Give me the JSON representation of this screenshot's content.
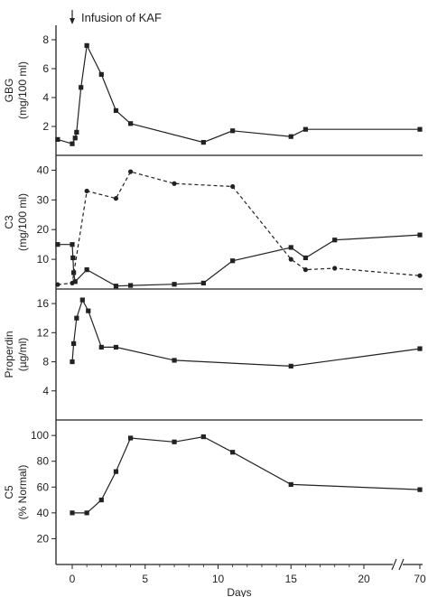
{
  "chart_data": [
    {
      "type": "line",
      "ylabel": "GBG (mg/100 ml)",
      "ylabel_lines": [
        "GBG",
        "(mg/100 ml)"
      ],
      "ylim": [
        0,
        9
      ],
      "yticks": [
        2,
        4,
        6,
        8
      ],
      "annotation": "Infusion of KAF",
      "series": [
        {
          "style": "solid",
          "marker": "square",
          "x": [
            -1,
            0,
            0.2,
            0.3,
            0.6,
            1,
            2,
            3,
            4,
            9,
            11,
            15,
            16,
            70
          ],
          "y": [
            1.1,
            0.8,
            1.2,
            1.6,
            4.7,
            7.6,
            5.6,
            3.1,
            2.2,
            0.9,
            1.7,
            1.3,
            1.8,
            1.8
          ]
        }
      ]
    },
    {
      "type": "line",
      "ylabel": "C3 (mg/100 ml)",
      "ylabel_lines": [
        "C3",
        "(mg/100 ml)"
      ],
      "ylim": [
        0,
        45
      ],
      "yticks": [
        10,
        20,
        30,
        40
      ],
      "series": [
        {
          "style": "solid",
          "marker": "square",
          "x": [
            -1,
            0,
            0.05,
            0.1,
            0.2,
            1,
            3,
            4,
            7,
            9,
            11,
            15,
            16,
            18,
            70
          ],
          "y": [
            15,
            15,
            10.5,
            5.5,
            2.5,
            6.5,
            1,
            1.2,
            1.6,
            2,
            9.5,
            14,
            10.5,
            16.5,
            18.2
          ]
        },
        {
          "style": "dashed",
          "marker": "circle",
          "x": [
            -1,
            0,
            1,
            3,
            4,
            7,
            11,
            15,
            16,
            18,
            70
          ],
          "y": [
            1.5,
            2,
            33,
            30.5,
            39.5,
            35.5,
            34.5,
            10,
            6.5,
            7,
            4.5
          ]
        }
      ]
    },
    {
      "type": "line",
      "ylabel": "Properdin (µg/ml)",
      "ylabel_lines": [
        "Properdin",
        "(µg/ml)"
      ],
      "ylim": [
        0,
        18
      ],
      "yticks": [
        4,
        8,
        12,
        16
      ],
      "series": [
        {
          "style": "solid",
          "marker": "square",
          "x": [
            0,
            0.1,
            0.3,
            0.7,
            1.1,
            2,
            3,
            7,
            15,
            70
          ],
          "y": [
            8,
            10.5,
            14,
            16.5,
            15,
            10,
            10,
            8.2,
            7.4,
            9.8
          ]
        }
      ]
    },
    {
      "type": "line",
      "ylabel": "C5 (% Normal)",
      "ylabel_lines": [
        "C5",
        "(% Normal)"
      ],
      "ylim": [
        0,
        112
      ],
      "yticks": [
        20,
        40,
        60,
        80,
        100
      ],
      "series": [
        {
          "style": "solid",
          "marker": "square",
          "x": [
            0,
            1,
            2,
            3,
            4,
            7,
            9,
            11,
            15,
            70
          ],
          "y": [
            40,
            40,
            50,
            72,
            98,
            95,
            99,
            87,
            62,
            58
          ]
        }
      ]
    }
  ],
  "x_axis": {
    "label": "Days",
    "ticks": [
      0,
      5,
      10,
      15,
      20,
      70
    ],
    "xlim": [
      -1,
      70
    ],
    "break": true
  }
}
